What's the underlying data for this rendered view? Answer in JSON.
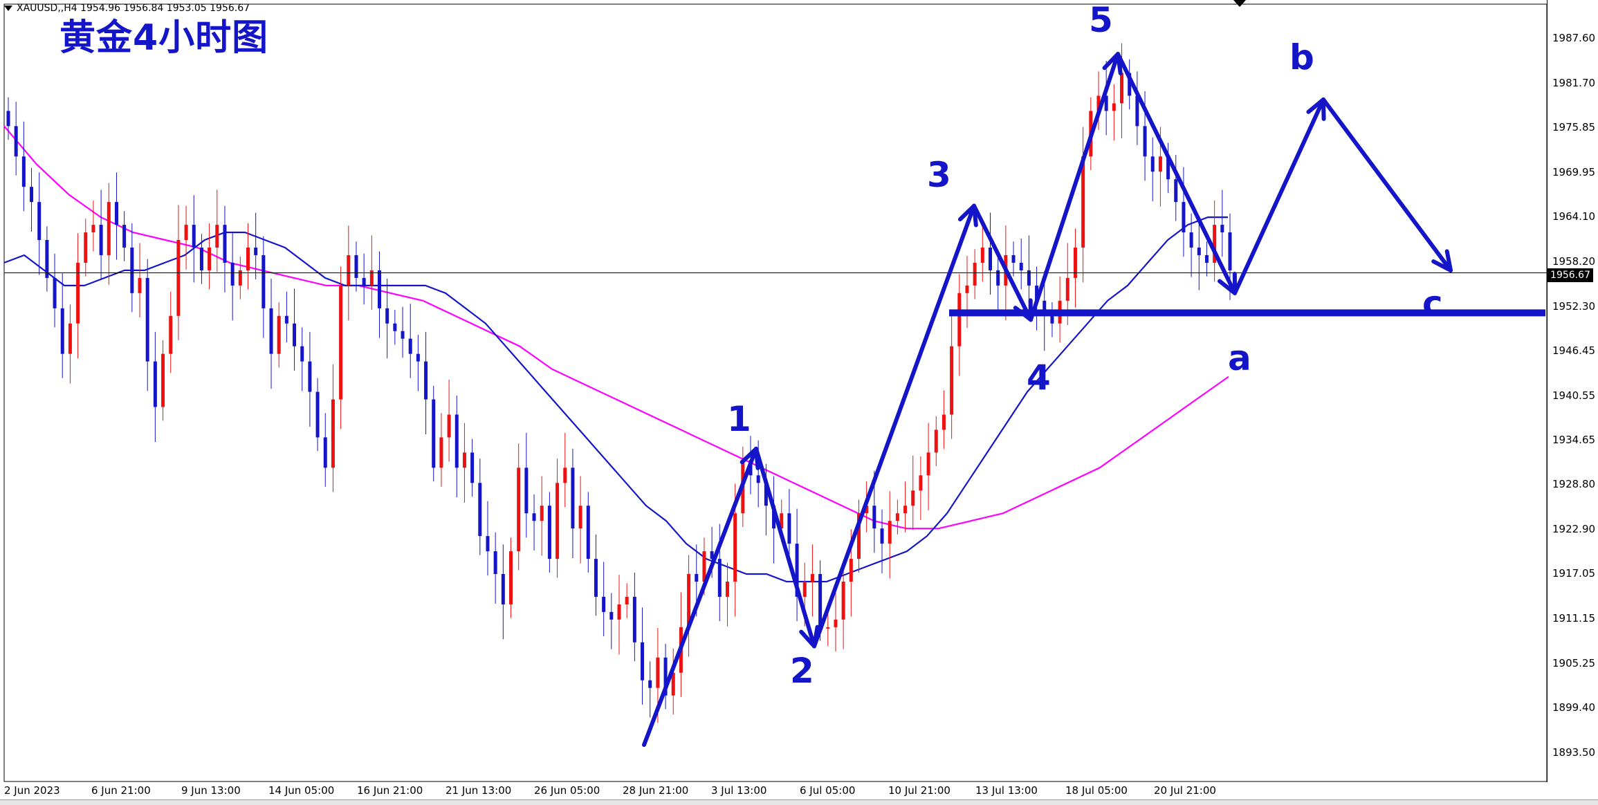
{
  "header": {
    "symbol_info": "XAUUSD,,H4  1954.96 1956.84 1953.05 1956.67",
    "title": "黄金4小时图"
  },
  "current_price": "1956.67",
  "wave_labels": [
    "1",
    "2",
    "3",
    "4",
    "5",
    "a",
    "b",
    "c"
  ],
  "chart_data": {
    "type": "candlestick",
    "symbol": "XAUUSD",
    "timeframe": "H4",
    "ohlc_header": {
      "open": 1954.96,
      "high": 1956.84,
      "low": 1953.05,
      "close": 1956.67
    },
    "ylim": [
      1888.5,
      1992.5
    ],
    "y_ticks": [
      "1987.60",
      "1981.70",
      "1975.85",
      "1969.95",
      "1964.10",
      "1958.20",
      "1952.30",
      "1946.45",
      "1940.55",
      "1934.65",
      "1928.80",
      "1922.90",
      "1917.05",
      "1911.15",
      "1905.25",
      "1899.40",
      "1893.50"
    ],
    "x_ticks": [
      "2 Jun 2023",
      "6 Jun 21:00",
      "9 Jun 13:00",
      "14 Jun 05:00",
      "16 Jun 21:00",
      "21 Jun 13:00",
      "26 Jun 05:00",
      "28 Jun 21:00",
      "3 Jul 13:00",
      "6 Jul 05:00",
      "10 Jul 21:00",
      "13 Jul 13:00",
      "18 Jul 05:00",
      "20 Jul 21:00"
    ],
    "current_price": 1956.67,
    "support_level": 1951.4,
    "series": [
      {
        "role": "close",
        "values": [
          1976,
          1972,
          1968,
          1966,
          1961,
          1956,
          1952,
          1946,
          1950,
          1958,
          1962,
          1963,
          1959,
          1966,
          1963,
          1960,
          1954,
          1956,
          1945,
          1939,
          1946,
          1951,
          1961,
          1963,
          1960,
          1957,
          1960,
          1963,
          1958,
          1955,
          1957,
          1960,
          1959,
          1952,
          1946,
          1951,
          1950,
          1947,
          1945,
          1941,
          1935,
          1931,
          1940,
          1955,
          1959,
          1956,
          1955,
          1957,
          1952,
          1950,
          1949,
          1948,
          1946,
          1945,
          1940,
          1931,
          1935,
          1938,
          1931,
          1933,
          1929,
          1922,
          1920,
          1917,
          1913,
          1920,
          1931,
          1925,
          1924,
          1926,
          1919,
          1929,
          1931,
          1923,
          1926,
          1919,
          1914,
          1912,
          1911,
          1913,
          1914,
          1908,
          1903,
          1902,
          1906,
          1901,
          1904,
          1910,
          1917,
          1916,
          1920,
          1919,
          1914,
          1916,
          1925,
          1932,
          1930,
          1929,
          1926,
          1923,
          1925,
          1921,
          1914,
          1916,
          1917,
          1910,
          1910,
          1911,
          1916,
          1919,
          1925,
          1926,
          1923,
          1921,
          1924,
          1925,
          1926,
          1928,
          1930,
          1933,
          1936,
          1938,
          1947,
          1954,
          1955,
          1958,
          1960,
          1957,
          1955,
          1959,
          1958,
          1957,
          1955,
          1953,
          1951,
          1950,
          1953,
          1956,
          1960,
          1972,
          1978,
          1980,
          1978,
          1979,
          1983,
          1980,
          1976,
          1972,
          1970,
          1972,
          1969,
          1966,
          1962,
          1960,
          1959,
          1958,
          1963,
          1962,
          1957
        ]
      },
      {
        "role": "ma_fast_blue",
        "values": [
          1958,
          1959,
          1957,
          1955,
          1955,
          1956,
          1957,
          1957,
          1958,
          1959,
          1961,
          1962,
          1962,
          1961,
          1960,
          1958,
          1956,
          1955,
          1955,
          1955,
          1955,
          1955,
          1954,
          1952,
          1950,
          1947,
          1944,
          1941,
          1938,
          1935,
          1932,
          1929,
          1926,
          1924,
          1921,
          1919,
          1918,
          1917,
          1917,
          1916,
          1916,
          1916,
          1917,
          1918,
          1919,
          1920,
          1922,
          1925,
          1929,
          1933,
          1937,
          1941,
          1944,
          1947,
          1950,
          1953,
          1955,
          1958,
          1961,
          1963,
          1964,
          1964
        ]
      },
      {
        "role": "ma_slow_magenta",
        "values": [
          1976,
          1971,
          1967,
          1964,
          1962,
          1961,
          1960,
          1958,
          1957,
          1956,
          1955,
          1955,
          1954,
          1953,
          1951,
          1949,
          1947,
          1944,
          1942,
          1940,
          1938,
          1936,
          1934,
          1932,
          1930,
          1928,
          1926,
          1924,
          1923,
          1923,
          1924,
          1925,
          1927,
          1929,
          1931,
          1934,
          1937,
          1940,
          1943
        ]
      }
    ],
    "wave_points": [
      {
        "label": "start",
        "value": 1894.5
      },
      {
        "label": "1",
        "value": 1933.5
      },
      {
        "label": "2",
        "value": 1907.5
      },
      {
        "label": "3",
        "value": 1965.5
      },
      {
        "label": "4",
        "value": 1950.5
      },
      {
        "label": "5",
        "value": 1985.5
      },
      {
        "label": "a",
        "value": 1954.0
      },
      {
        "label": "b",
        "value": 1979.5
      },
      {
        "label": "c",
        "value": 1957.0
      }
    ]
  }
}
